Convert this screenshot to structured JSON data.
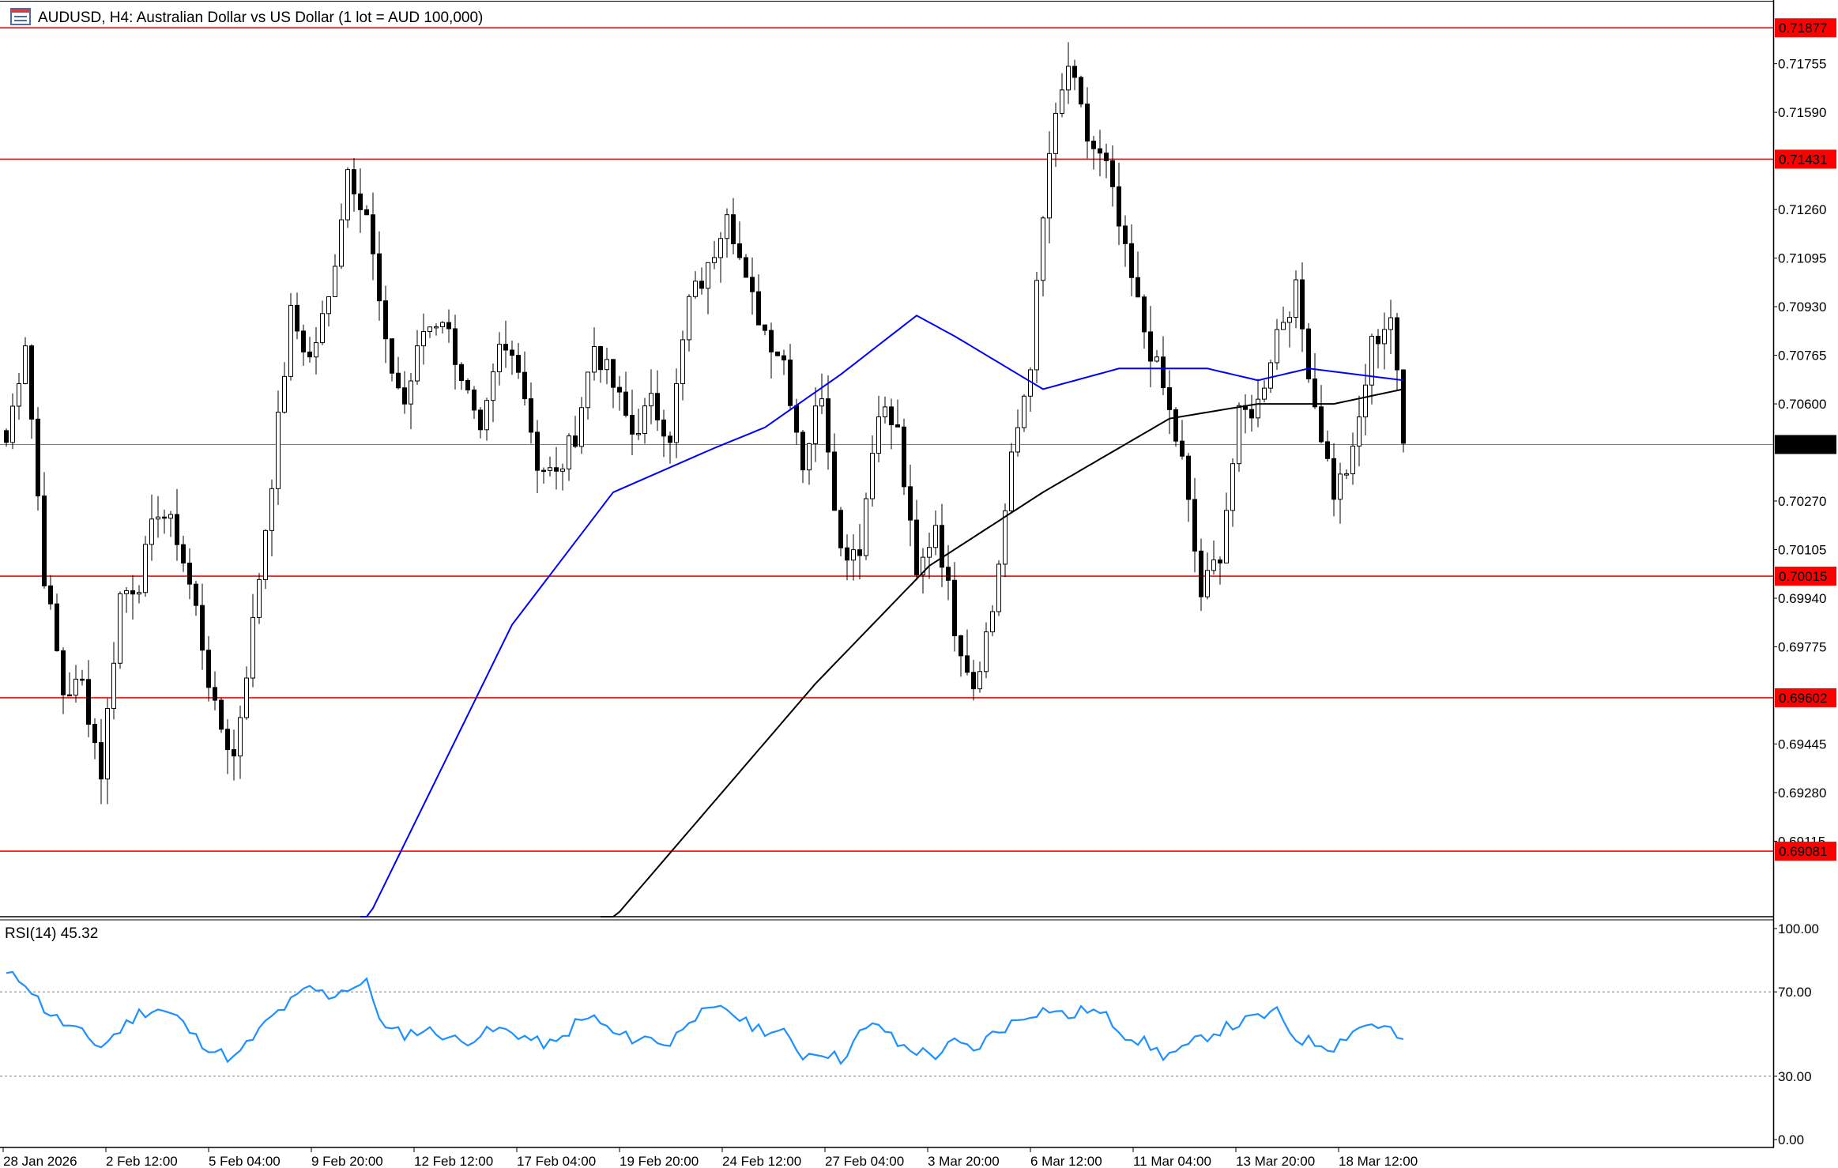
{
  "header": {
    "title": "AUDUSD, H4:  Australian Dollar vs US Dollar (1 lot = AUD 100,000)"
  },
  "chart_data": [
    {
      "type": "candlestick",
      "symbol": "AUDUSD",
      "timeframe": "H4",
      "ylim": [
        0.6888,
        0.7195
      ],
      "price_ticks": [
        "0.71755",
        "0.71590",
        "0.71260",
        "0.71095",
        "0.70930",
        "0.70765",
        "0.70600",
        "0.70270",
        "0.70105",
        "0.69940",
        "0.69775",
        "0.69445",
        "0.69280",
        "0.69115"
      ],
      "current_price": {
        "label": "0.70462",
        "value": 0.70462,
        "color": "#000000"
      },
      "levels": [
        {
          "label": "0.71877",
          "value": 0.71877,
          "color": "#ff0000"
        },
        {
          "label": "0.71431",
          "value": 0.71431,
          "color": "#ff0000"
        },
        {
          "label": "0.70015",
          "value": 0.70015,
          "color": "#ff0000"
        },
        {
          "label": "0.69602",
          "value": 0.69602,
          "color": "#ff0000"
        },
        {
          "label": "0.69081",
          "value": 0.69081,
          "color": "#ff0000"
        }
      ],
      "x_ticks": [
        "28 Jan 2026",
        "2 Feb 12:00",
        "5 Feb 04:00",
        "9 Feb 20:00",
        "12 Feb 12:00",
        "17 Feb 04:00",
        "19 Feb 20:00",
        "24 Feb 12:00",
        "27 Feb 04:00",
        "3 Mar 20:00",
        "6 Mar 12:00",
        "11 Mar 04:00",
        "13 Mar 20:00",
        "18 Mar 12:00"
      ],
      "close_anchors": [
        [
          0,
          0.7047
        ],
        [
          3,
          0.7082
        ],
        [
          6,
          0.7002
        ],
        [
          9,
          0.6962
        ],
        [
          12,
          0.6965
        ],
        [
          15,
          0.6935
        ],
        [
          18,
          0.6995
        ],
        [
          21,
          0.7
        ],
        [
          24,
          0.7025
        ],
        [
          27,
          0.7015
        ],
        [
          30,
          0.699
        ],
        [
          33,
          0.6955
        ],
        [
          36,
          0.694
        ],
        [
          39,
          0.6985
        ],
        [
          42,
          0.7035
        ],
        [
          45,
          0.709
        ],
        [
          48,
          0.7075
        ],
        [
          51,
          0.7095
        ],
        [
          54,
          0.714
        ],
        [
          57,
          0.7125
        ],
        [
          60,
          0.7078
        ],
        [
          63,
          0.706
        ],
        [
          66,
          0.7085
        ],
        [
          69,
          0.709
        ],
        [
          72,
          0.707
        ],
        [
          75,
          0.7047
        ],
        [
          78,
          0.7078
        ],
        [
          81,
          0.7075
        ],
        [
          84,
          0.704
        ],
        [
          87,
          0.7035
        ],
        [
          90,
          0.705
        ],
        [
          93,
          0.708
        ],
        [
          96,
          0.7066
        ],
        [
          99,
          0.705
        ],
        [
          102,
          0.706
        ],
        [
          105,
          0.705
        ],
        [
          108,
          0.7095
        ],
        [
          111,
          0.7105
        ],
        [
          114,
          0.7128
        ],
        [
          117,
          0.71
        ],
        [
          120,
          0.7085
        ],
        [
          123,
          0.7075
        ],
        [
          126,
          0.704
        ],
        [
          129,
          0.7065
        ],
        [
          132,
          0.701
        ],
        [
          135,
          0.7012
        ],
        [
          138,
          0.706
        ],
        [
          141,
          0.705
        ],
        [
          144,
          0.7
        ],
        [
          147,
          0.702
        ],
        [
          150,
          0.6985
        ],
        [
          153,
          0.6965
        ],
        [
          156,
          0.699
        ],
        [
          159,
          0.704
        ],
        [
          162,
          0.7075
        ],
        [
          165,
          0.7145
        ],
        [
          168,
          0.7175
        ],
        [
          171,
          0.715
        ],
        [
          174,
          0.714
        ],
        [
          177,
          0.711
        ],
        [
          180,
          0.7085
        ],
        [
          183,
          0.7065
        ],
        [
          186,
          0.704
        ],
        [
          189,
          0.6995
        ],
        [
          192,
          0.701
        ],
        [
          195,
          0.7055
        ],
        [
          198,
          0.706
        ],
        [
          201,
          0.7085
        ],
        [
          204,
          0.7098
        ],
        [
          207,
          0.706
        ],
        [
          210,
          0.703
        ],
        [
          213,
          0.7042
        ],
        [
          216,
          0.708
        ],
        [
          219,
          0.709
        ],
        [
          221,
          0.7046
        ]
      ],
      "ma_blue": {
        "color": "#0000ff",
        "points": [
          [
            56,
            0.688
          ],
          [
            80,
            0.6985
          ],
          [
            96,
            0.703
          ],
          [
            112,
            0.7045
          ],
          [
            120,
            0.7052
          ],
          [
            132,
            0.707
          ],
          [
            144,
            0.709
          ],
          [
            150,
            0.7083
          ],
          [
            164,
            0.7065
          ],
          [
            176,
            0.7072
          ],
          [
            190,
            0.7072
          ],
          [
            198,
            0.7068
          ],
          [
            206,
            0.7072
          ],
          [
            221,
            0.7068
          ]
        ]
      },
      "ma_black": {
        "color": "#000000",
        "points": [
          [
            94,
            0.688
          ],
          [
            110,
            0.692
          ],
          [
            128,
            0.6965
          ],
          [
            146,
            0.7005
          ],
          [
            164,
            0.703
          ],
          [
            184,
            0.7055
          ],
          [
            198,
            0.706
          ],
          [
            210,
            0.706
          ],
          [
            221,
            0.7065
          ]
        ]
      }
    },
    {
      "type": "line",
      "title": "RSI(14) 45.32",
      "ylim": [
        0,
        100
      ],
      "ticks": [
        "100.00",
        "70.00",
        "30.00",
        "0.00"
      ],
      "levels": [
        70,
        30
      ],
      "series": [
        {
          "color": "#1e90ff",
          "anchors": [
            [
              0,
              78
            ],
            [
              3,
              75
            ],
            [
              6,
              62
            ],
            [
              9,
              55
            ],
            [
              12,
              50
            ],
            [
              15,
              44
            ],
            [
              18,
              52
            ],
            [
              21,
              60
            ],
            [
              24,
              62
            ],
            [
              27,
              58
            ],
            [
              30,
              48
            ],
            [
              33,
              42
            ],
            [
              36,
              38
            ],
            [
              39,
              48
            ],
            [
              42,
              58
            ],
            [
              45,
              65
            ],
            [
              48,
              72
            ],
            [
              51,
              68
            ],
            [
              54,
              72
            ],
            [
              57,
              74
            ],
            [
              60,
              52
            ],
            [
              63,
              50
            ],
            [
              66,
              52
            ],
            [
              69,
              50
            ],
            [
              72,
              46
            ],
            [
              75,
              50
            ],
            [
              78,
              52
            ],
            [
              81,
              50
            ],
            [
              84,
              46
            ],
            [
              87,
              45
            ],
            [
              90,
              55
            ],
            [
              93,
              58
            ],
            [
              96,
              50
            ],
            [
              99,
              48
            ],
            [
              102,
              48
            ],
            [
              105,
              45
            ],
            [
              108,
              58
            ],
            [
              111,
              60
            ],
            [
              114,
              62
            ],
            [
              117,
              55
            ],
            [
              120,
              52
            ],
            [
              123,
              50
            ],
            [
              126,
              40
            ],
            [
              129,
              42
            ],
            [
              132,
              38
            ],
            [
              135,
              50
            ],
            [
              138,
              55
            ],
            [
              141,
              45
            ],
            [
              144,
              42
            ],
            [
              147,
              40
            ],
            [
              150,
              46
            ],
            [
              153,
              42
            ],
            [
              156,
              50
            ],
            [
              159,
              55
            ],
            [
              162,
              60
            ],
            [
              165,
              62
            ],
            [
              168,
              58
            ],
            [
              171,
              62
            ],
            [
              174,
              58
            ],
            [
              177,
              50
            ],
            [
              180,
              46
            ],
            [
              183,
              40
            ],
            [
              186,
              42
            ],
            [
              189,
              48
            ],
            [
              192,
              52
            ],
            [
              195,
              55
            ],
            [
              198,
              58
            ],
            [
              201,
              60
            ],
            [
              204,
              48
            ],
            [
              207,
              46
            ],
            [
              210,
              44
            ],
            [
              213,
              52
            ],
            [
              216,
              55
            ],
            [
              219,
              52
            ],
            [
              221,
              45
            ]
          ]
        }
      ]
    }
  ]
}
